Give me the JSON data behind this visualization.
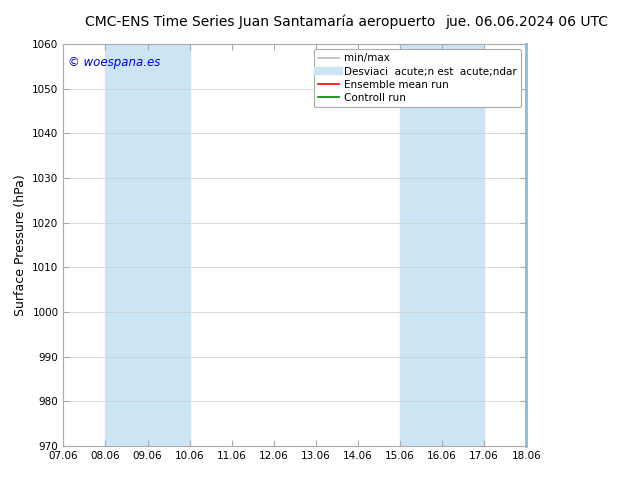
{
  "title_left": "CMC-ENS Time Series Juan Santamaría aeropuerto",
  "title_right": "jue. 06.06.2024 06 UTC",
  "ylabel": "Surface Pressure (hPa)",
  "watermark": "© woespana.es",
  "watermark_color": "#0000dd",
  "ylim": [
    970,
    1060
  ],
  "yticks": [
    970,
    980,
    990,
    1000,
    1010,
    1020,
    1030,
    1040,
    1050,
    1060
  ],
  "xtick_labels": [
    "07.06",
    "08.06",
    "09.06",
    "10.06",
    "11.06",
    "12.06",
    "13.06",
    "14.06",
    "15.06",
    "16.06",
    "17.06",
    "18.06"
  ],
  "xtick_positions": [
    0,
    1,
    2,
    3,
    4,
    5,
    6,
    7,
    8,
    9,
    10,
    11
  ],
  "background_color": "#ffffff",
  "plot_bg_color": "#ffffff",
  "shaded_regions": [
    {
      "x_start": 1,
      "x_end": 3,
      "color": "#cce5f5"
    },
    {
      "x_start": 8,
      "x_end": 10,
      "color": "#cce5f5"
    }
  ],
  "legend_entries": [
    {
      "label": "min/max",
      "color": "#bbbbbb",
      "lw": 1.2,
      "style": "-"
    },
    {
      "label": "Desviaci  acute;n est  acute;ndar",
      "color": "#cce5f5",
      "lw": 6,
      "style": "-"
    },
    {
      "label": "Ensemble mean run",
      "color": "#ff0000",
      "lw": 1.2,
      "style": "-"
    },
    {
      "label": "Controll run",
      "color": "#008800",
      "lw": 1.2,
      "style": "-"
    }
  ],
  "spine_color": "#aaaaaa",
  "right_spine_color": "#88bbdd",
  "title_fontsize": 10,
  "tick_fontsize": 7.5,
  "ylabel_fontsize": 9,
  "watermark_fontsize": 8.5,
  "legend_fontsize": 7.5
}
